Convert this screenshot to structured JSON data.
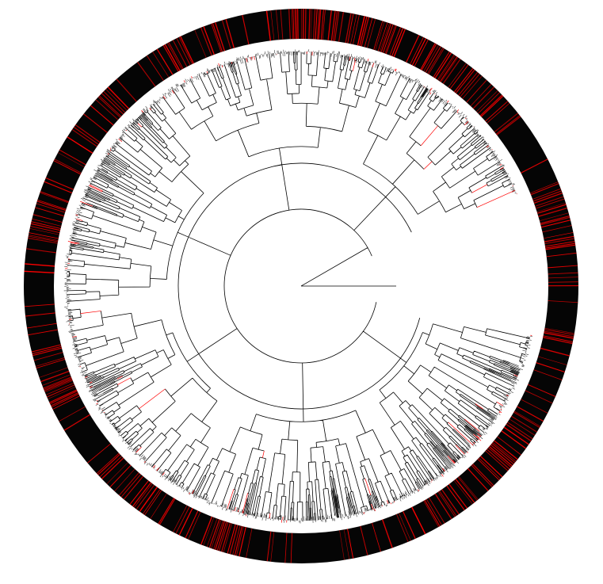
{
  "figure": {
    "type": "circular-phylogenetic-tree",
    "colors": {
      "background": "#ffffff",
      "branch": "#000000",
      "highlight": "#ff0000",
      "ring_base": "#050505",
      "ring_separator": "#ffffff"
    },
    "tree": {
      "root_arc_extent_degrees": 325,
      "highlighted_fraction": 0.12,
      "tip_density": "very-high"
    },
    "ring": {
      "description_visible": false,
      "red_marks_fraction": 0.28
    }
  }
}
